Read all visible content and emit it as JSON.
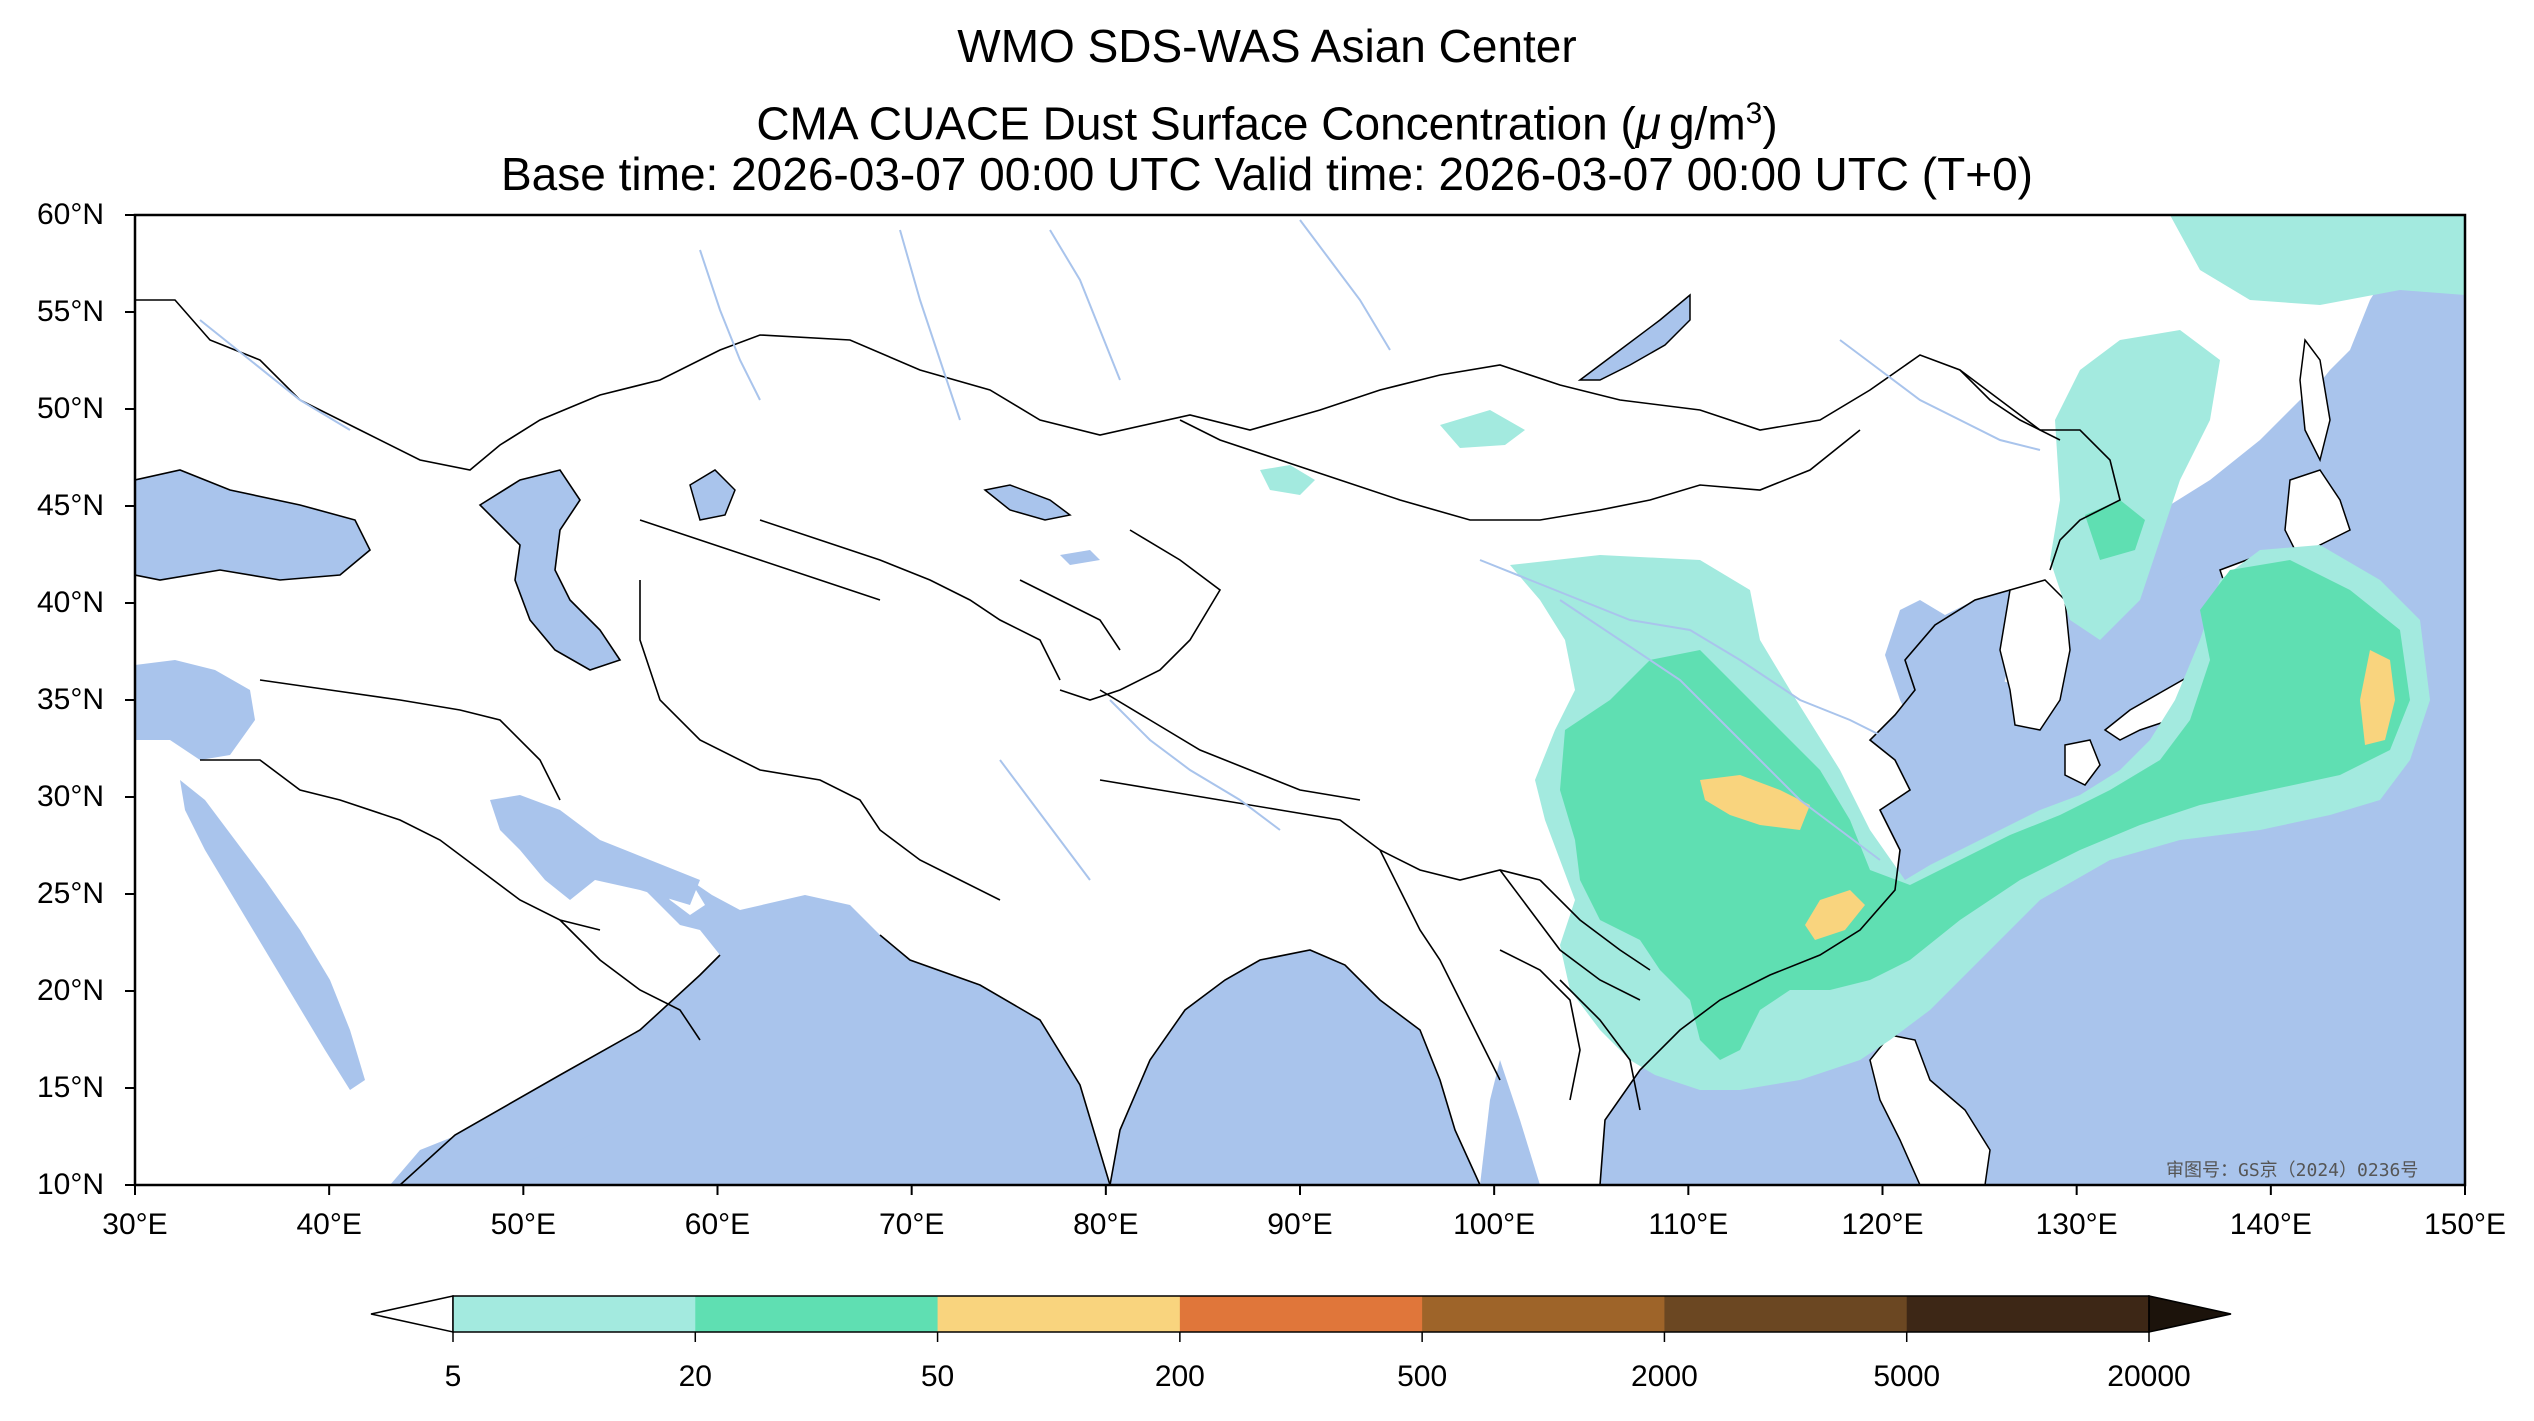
{
  "header": {
    "title": "WMO SDS-WAS Asian Center",
    "subtitle_prefix": "CMA CUACE Dust Surface Concentration (",
    "subtitle_mu": "μ",
    "subtitle_unit": "g/m",
    "subtitle_exp": "3",
    "subtitle_suffix": ")",
    "times": "Base time: 2026-03-07 00:00 UTC Valid time: 2026-03-07 00:00 UTC (T+0)"
  },
  "map": {
    "lon_range": [
      30,
      150
    ],
    "lat_range": [
      10,
      60
    ],
    "lat_labels": [
      "60°N",
      "55°N",
      "50°N",
      "45°N",
      "40°N",
      "35°N",
      "30°N",
      "25°N",
      "20°N",
      "15°N",
      "10°N"
    ],
    "lon_labels": [
      "30°E",
      "40°E",
      "50°E",
      "60°E",
      "70°E",
      "80°E",
      "90°E",
      "100°E",
      "110°E",
      "120°E",
      "130°E",
      "140°E",
      "150°E"
    ],
    "watermark": "审图号：GS京（2024）0236号",
    "colors": {
      "ocean": "#a9c4ec",
      "land": "#ffffff",
      "rivers": "#a9c4ec",
      "borders": "#000000"
    }
  },
  "colorbar": {
    "labels": [
      "5",
      "20",
      "50",
      "200",
      "500",
      "2000",
      "5000",
      "20000"
    ],
    "colors": [
      "#a3eadf",
      "#5fdfb2",
      "#f9d47e",
      "#e0763a",
      "#9e6429",
      "#6b4722",
      "#3d2716"
    ],
    "under_color": "#ffffff",
    "over_color": "#1c130b"
  }
}
